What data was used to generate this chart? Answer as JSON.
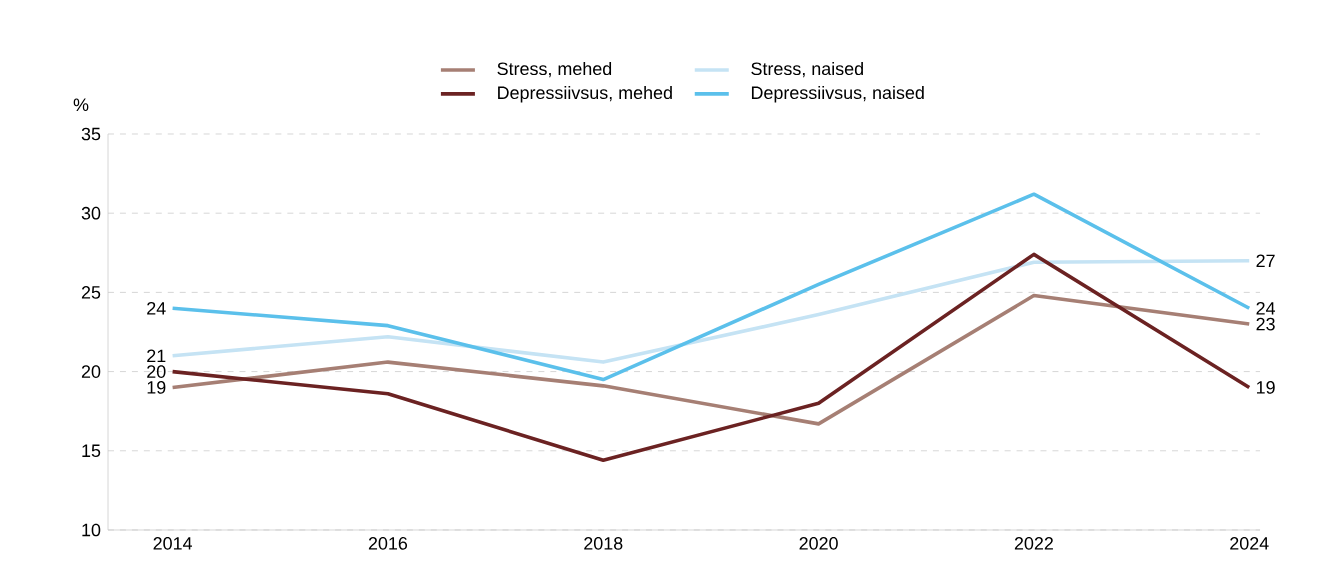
{
  "chart_data": {
    "type": "line",
    "ylabel": "%",
    "x": [
      2014,
      2016,
      2018,
      2020,
      2022,
      2024
    ],
    "xlim": [
      2013.4,
      2024.1
    ],
    "xticks": [
      2014,
      2016,
      2018,
      2020,
      2022,
      2024
    ],
    "ylim": [
      10,
      35
    ],
    "yticks": [
      10,
      15,
      20,
      25,
      30,
      35
    ],
    "grid": "y",
    "legend": "top",
    "marker": "none",
    "line_style": "solid",
    "series": [
      {
        "name": "Stress, mehed",
        "color": "#a67f74",
        "values": [
          19,
          20.6,
          19.1,
          16.7,
          24.8,
          23
        ],
        "value_labels": [
          "19",
          null,
          null,
          null,
          null,
          "23"
        ]
      },
      {
        "name": "Stress, naised",
        "color": "#c5e3f4",
        "values": [
          21,
          22.2,
          20.6,
          23.6,
          26.9,
          27
        ],
        "value_labels": [
          "21",
          null,
          null,
          null,
          null,
          "27"
        ]
      },
      {
        "name": "Depressiivsus, mehed",
        "color": "#6b2222",
        "values": [
          20,
          18.6,
          14.4,
          18.0,
          27.4,
          19
        ],
        "value_labels": [
          "20",
          null,
          null,
          null,
          null,
          "19"
        ]
      },
      {
        "name": "Depressiivsus, naised",
        "color": "#5bc0eb",
        "values": [
          24,
          22.9,
          19.5,
          25.5,
          31.2,
          24
        ],
        "value_labels": [
          "24",
          null,
          null,
          null,
          null,
          "24"
        ]
      }
    ]
  }
}
